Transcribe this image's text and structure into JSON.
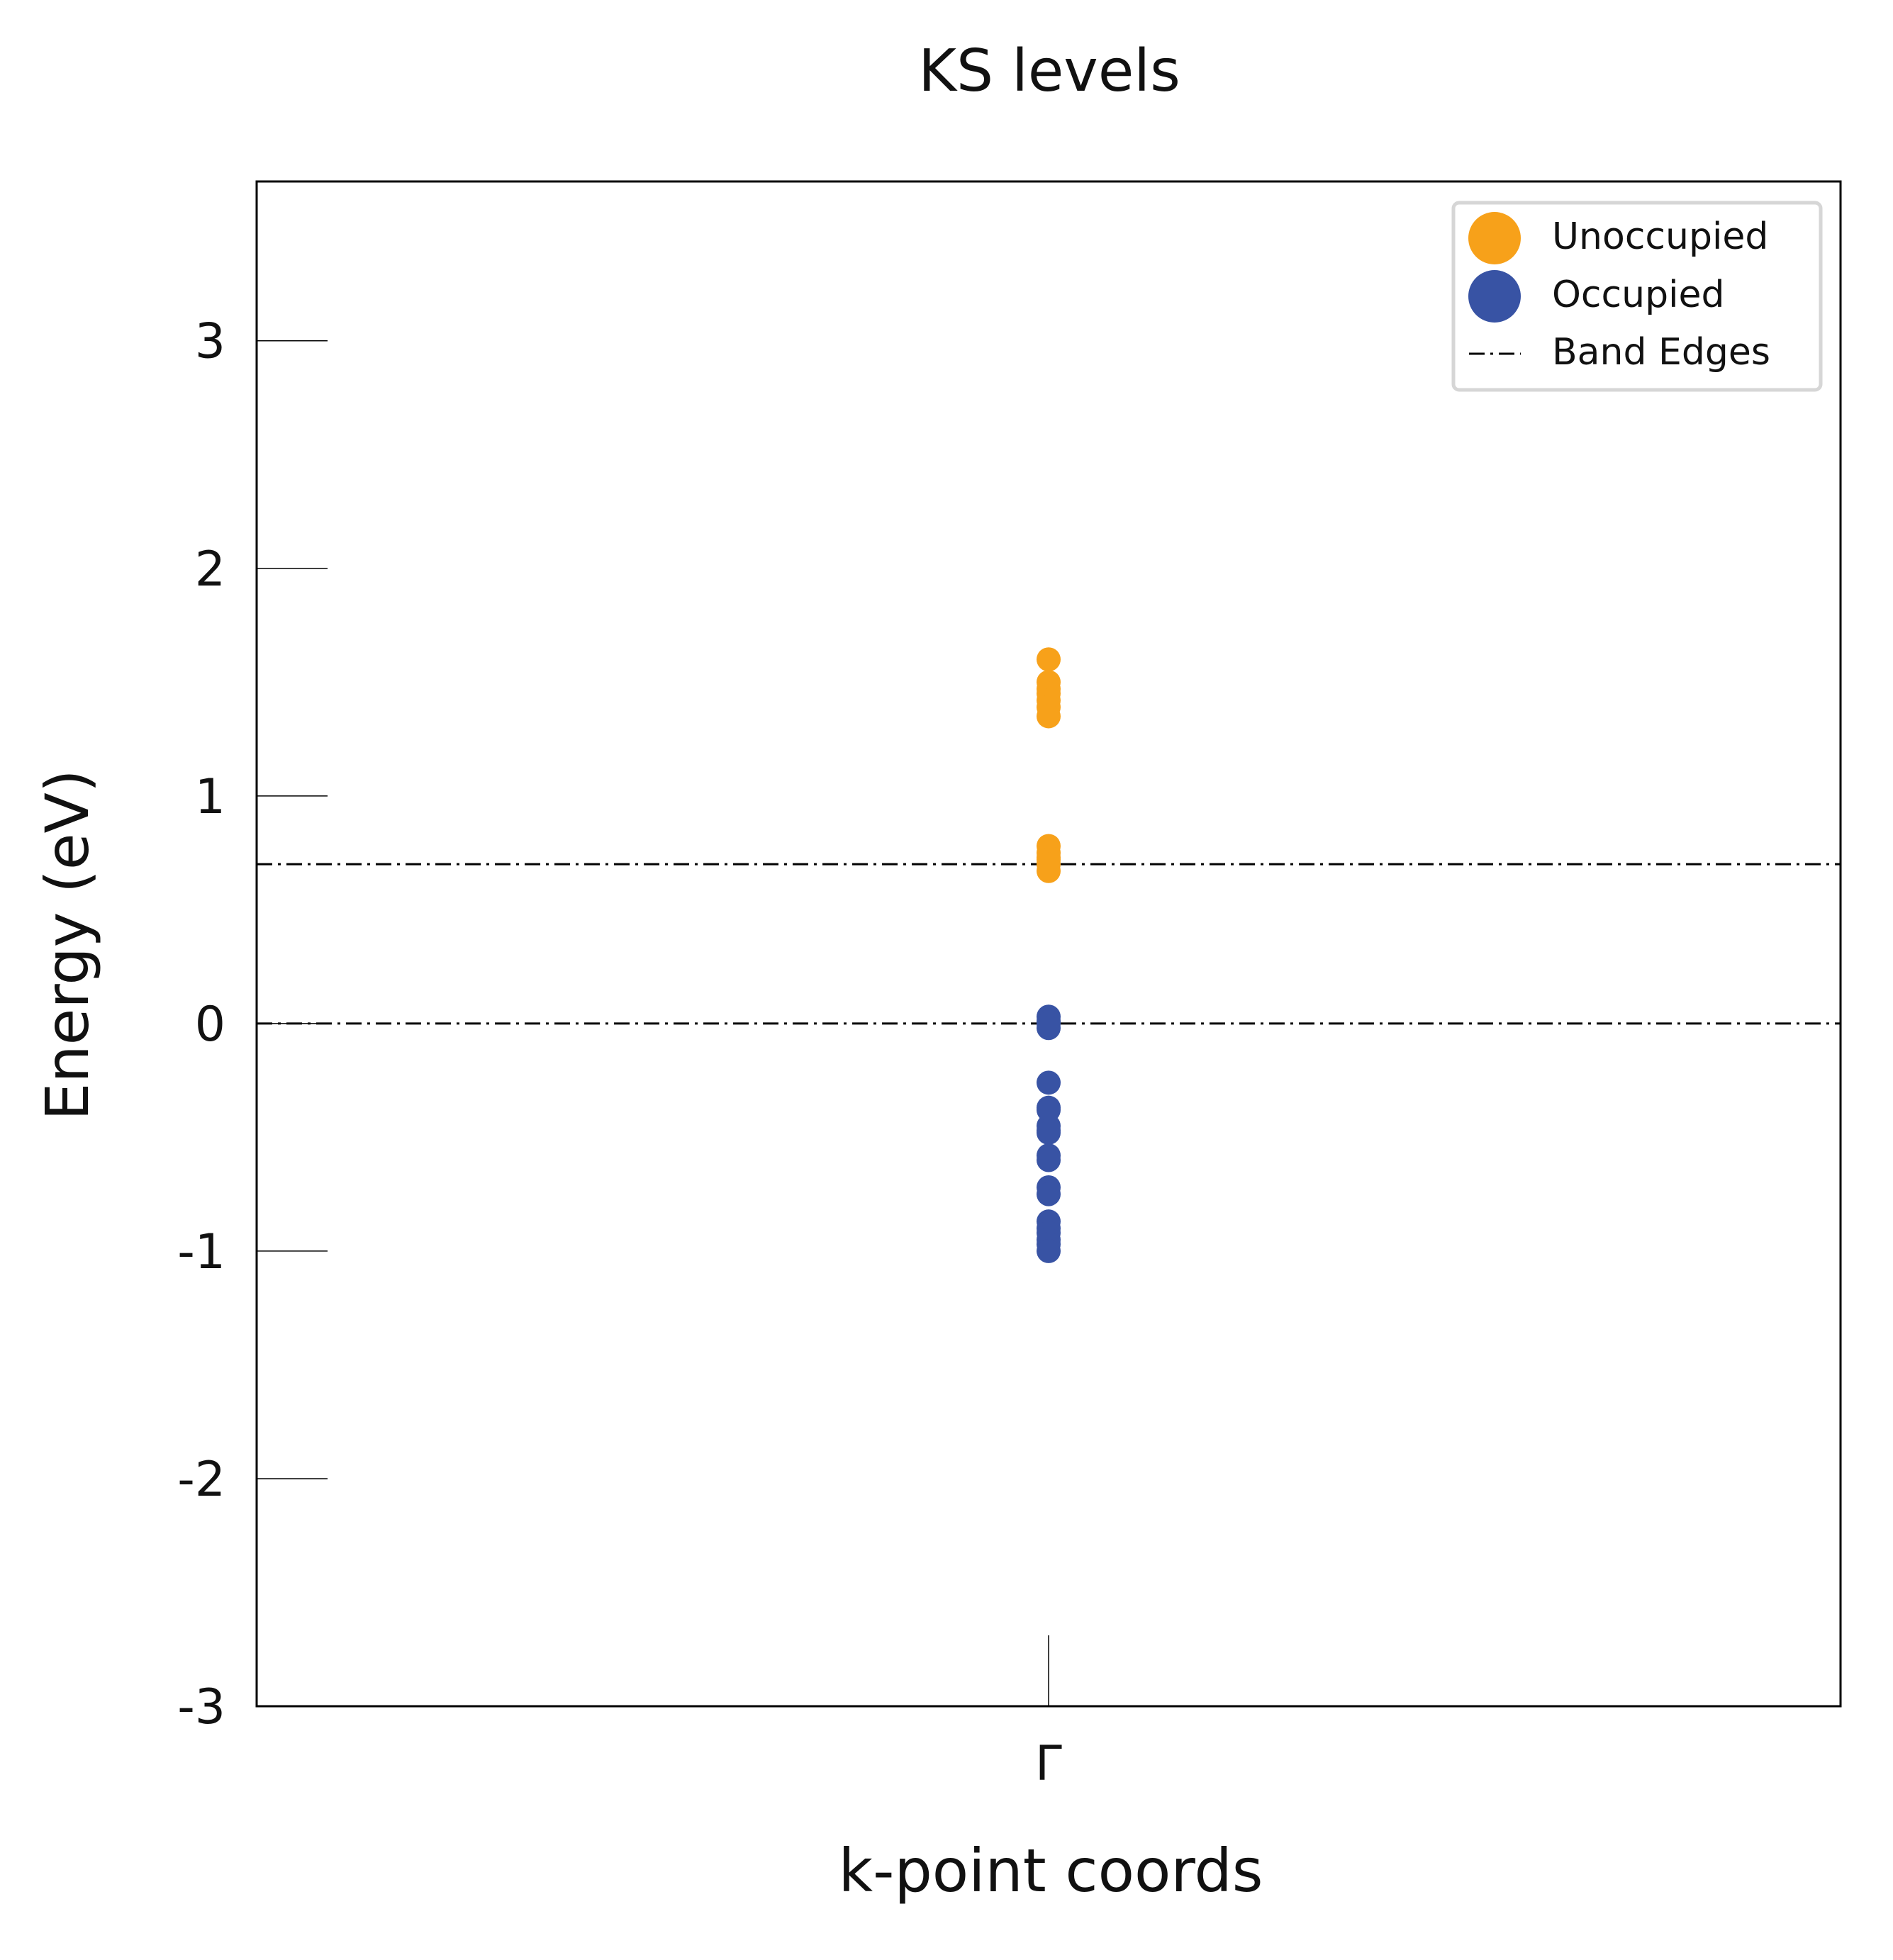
{
  "chart_data": {
    "type": "scatter",
    "title": "KS levels",
    "xlabel": "k-point coords",
    "ylabel": "Energy (eV)",
    "ylim": [
      -3,
      3.7
    ],
    "yticks": [
      "-3",
      "-2",
      "-1",
      "0",
      "1",
      "2",
      "3"
    ],
    "ytick_values": [
      -3,
      -2,
      -1,
      0,
      1,
      2,
      3
    ],
    "xticks": [
      "Γ"
    ],
    "grid": false,
    "legend_position": "top-right",
    "series": [
      {
        "name": "Unoccupied",
        "color": "#F7A11A",
        "x": [
          "Γ",
          "Γ",
          "Γ",
          "Γ",
          "Γ",
          "Γ",
          "Γ",
          "Γ",
          "Γ",
          "Γ",
          "Γ",
          "Γ",
          "Γ"
        ],
        "y": [
          1.6,
          1.5,
          1.47,
          1.45,
          1.42,
          1.39,
          1.35,
          0.78,
          0.75,
          0.73,
          0.72,
          0.7,
          0.67
        ]
      },
      {
        "name": "Occupied",
        "color": "#3853A4",
        "x": [
          "Γ",
          "Γ",
          "Γ",
          "Γ",
          "Γ",
          "Γ",
          "Γ",
          "Γ",
          "Γ",
          "Γ",
          "Γ",
          "Γ",
          "Γ",
          "Γ",
          "Γ",
          "Γ",
          "Γ",
          "Γ",
          "Γ",
          "Γ"
        ],
        "y": [
          0.03,
          0.01,
          0.0,
          -0.02,
          -0.26,
          -0.37,
          -0.38,
          -0.45,
          -0.47,
          -0.48,
          -0.58,
          -0.6,
          -0.72,
          -0.75,
          -0.87,
          -0.9,
          -0.92,
          -0.95,
          -0.97,
          -1.0
        ]
      }
    ],
    "band_edges": {
      "name": "Band Edges",
      "values": [
        0.7,
        0.0
      ],
      "color": "#000000"
    }
  }
}
